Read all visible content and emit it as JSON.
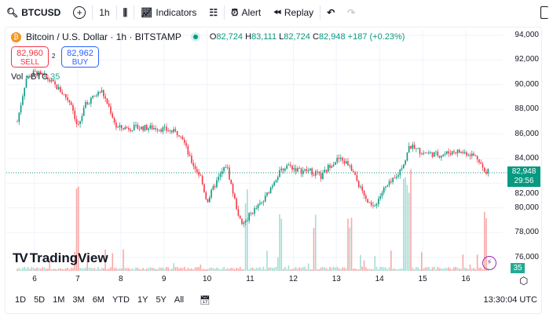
{
  "toolbar": {
    "symbol": "BTCUSD",
    "interval": "1h",
    "indicators": "Indicators",
    "alert": "Alert",
    "replay": "Replay"
  },
  "legend": {
    "title": "Bitcoin / U.S. Dollar · 1h · BITSTAMP",
    "o_label": "O",
    "o": "82,724",
    "h_label": "H",
    "h": "83,111",
    "l_label": "L",
    "l": "82,724",
    "c_label": "C",
    "c": "82,948",
    "change": "+187 (+0.23%)"
  },
  "trade": {
    "sell_price": "82,960",
    "sell_label": "SELL",
    "spread": "2",
    "buy_price": "82,962",
    "buy_label": "BUY"
  },
  "volume": {
    "label": "Vol · BTC",
    "value": "35"
  },
  "price_axis": {
    "labels": [
      "94,000",
      "92,000",
      "90,000",
      "88,000",
      "86,000",
      "84,000",
      "82,000",
      "80,000",
      "78,000",
      "76,000"
    ],
    "current_price": "82,948",
    "countdown": "29:56",
    "volume_badge": "35"
  },
  "time_axis": {
    "labels": [
      "6",
      "7",
      "8",
      "9",
      "10",
      "11",
      "12",
      "13",
      "14",
      "15",
      "16"
    ]
  },
  "bottom": {
    "ranges": [
      "1D",
      "5D",
      "1M",
      "3M",
      "6M",
      "YTD",
      "1Y",
      "5Y",
      "All"
    ],
    "clock": "13:30:04 UTC"
  },
  "watermark": "TradingView",
  "colors": {
    "up": "#089981",
    "down": "#f23645",
    "vol_up": "#a7dcd3",
    "vol_down": "#f7a9a7"
  },
  "chart_data": {
    "type": "candlestick",
    "ylim": [
      75000,
      95000
    ],
    "xlim_days": [
      5.4,
      16.8
    ],
    "price_path": [
      [
        5.6,
        87000
      ],
      [
        5.8,
        90500
      ],
      [
        6.0,
        91000
      ],
      [
        6.3,
        90500
      ],
      [
        6.6,
        89500
      ],
      [
        6.85,
        88500
      ],
      [
        7.0,
        86500
      ],
      [
        7.2,
        88500
      ],
      [
        7.55,
        89500
      ],
      [
        7.75,
        88000
      ],
      [
        7.9,
        86500
      ],
      [
        8.3,
        86500
      ],
      [
        8.85,
        86500
      ],
      [
        9.4,
        86000
      ],
      [
        9.6,
        84000
      ],
      [
        9.85,
        82500
      ],
      [
        10.0,
        80500
      ],
      [
        10.2,
        82000
      ],
      [
        10.45,
        83500
      ],
      [
        10.65,
        80500
      ],
      [
        10.8,
        78500
      ],
      [
        11.0,
        79500
      ],
      [
        11.3,
        80500
      ],
      [
        11.6,
        82500
      ],
      [
        11.85,
        83500
      ],
      [
        12.15,
        83000
      ],
      [
        12.4,
        83000
      ],
      [
        12.65,
        82500
      ],
      [
        12.85,
        83500
      ],
      [
        13.05,
        84000
      ],
      [
        13.3,
        83500
      ],
      [
        13.5,
        82000
      ],
      [
        13.7,
        80500
      ],
      [
        13.85,
        80000
      ],
      [
        14.1,
        81500
      ],
      [
        14.4,
        82500
      ],
      [
        14.6,
        84000
      ],
      [
        14.7,
        85000
      ],
      [
        15.0,
        84500
      ],
      [
        15.4,
        84300
      ],
      [
        15.75,
        84600
      ],
      [
        16.1,
        84400
      ],
      [
        16.3,
        84000
      ],
      [
        16.45,
        82700
      ],
      [
        16.52,
        82948
      ]
    ],
    "volume_spikes": [
      [
        5.5,
        3
      ],
      [
        7.0,
        4
      ],
      [
        10.9,
        3
      ],
      [
        11.7,
        2.5
      ],
      [
        12.5,
        2
      ],
      [
        13.3,
        2.2
      ],
      [
        14.6,
        4.5
      ],
      [
        14.7,
        4
      ],
      [
        16.45,
        2.5
      ]
    ]
  }
}
